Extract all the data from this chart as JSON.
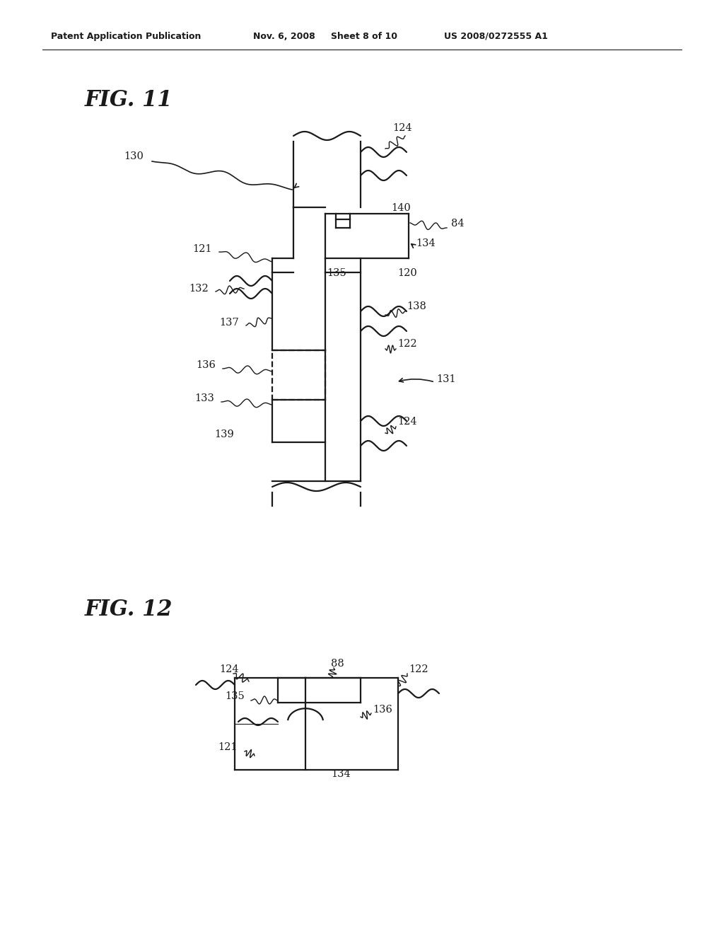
{
  "background_color": "#ffffff",
  "header_text": "Patent Application Publication",
  "header_date": "Nov. 6, 2008",
  "header_sheet": "Sheet 8 of 10",
  "header_patent": "US 2008/0272555 A1",
  "fig11_label": "FIG. 11",
  "fig12_label": "FIG. 12",
  "line_color": "#1a1a1a",
  "text_color": "#1a1a1a",
  "lw": 1.6
}
